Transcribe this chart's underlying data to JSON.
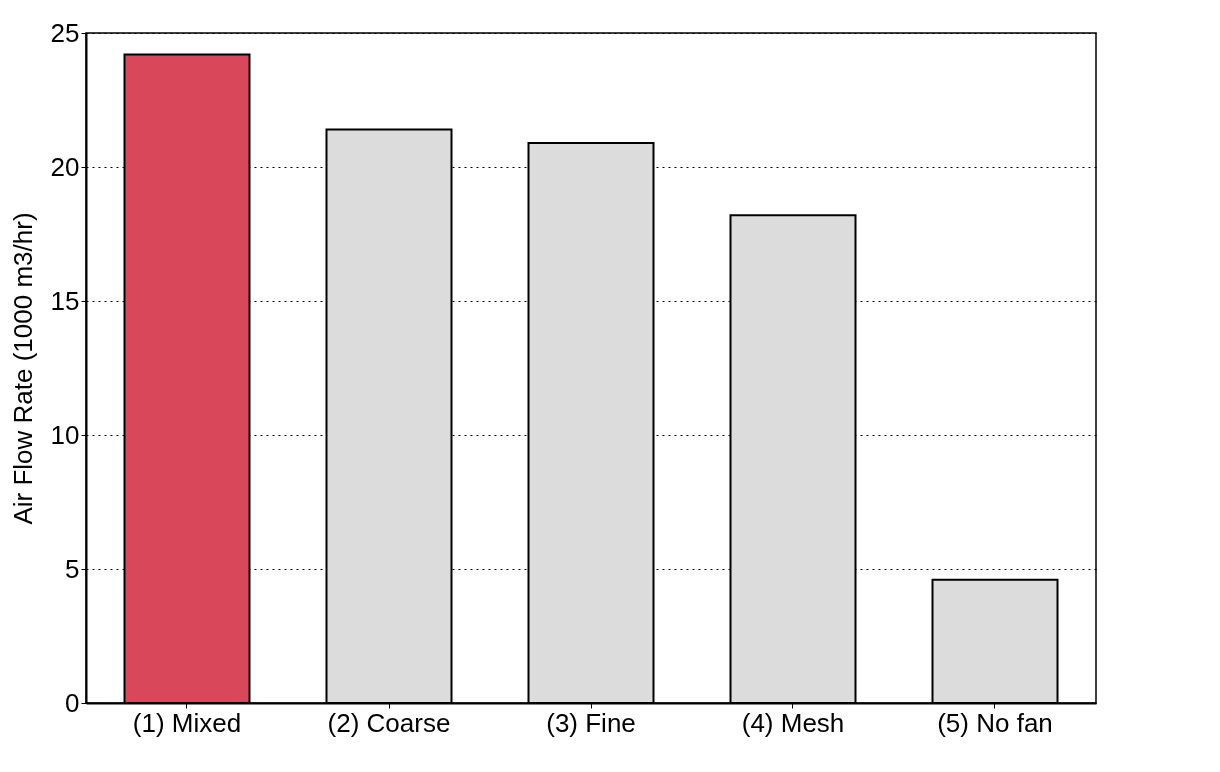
{
  "chart_data": {
    "type": "bar",
    "ylabel": "Air Flow Rate (1000 m3/hr)",
    "categories": [
      "(1) Mixed",
      "(2) Coarse",
      "(3) Fine",
      "(4) Mesh",
      "(5) No fan"
    ],
    "values": [
      24.2,
      21.4,
      20.9,
      18.2,
      4.6
    ],
    "colors": [
      "#d9485a",
      "#dcdcdc",
      "#dcdcdc",
      "#dcdcdc",
      "#dcdcdc"
    ],
    "ylim": [
      0,
      25
    ],
    "yticks": [
      0,
      5,
      10,
      15,
      20,
      25
    ],
    "grid": "y"
  }
}
